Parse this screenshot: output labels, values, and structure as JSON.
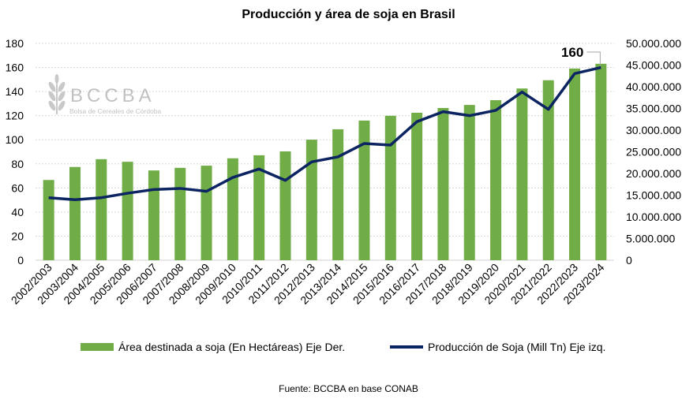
{
  "chart_data": {
    "type": "bar+line",
    "title": "Producción y área de soja en Brasil",
    "categories": [
      "2002/2003",
      "2003/2004",
      "2004/2005",
      "2005/2006",
      "2006/2007",
      "2007/2008",
      "2008/2009",
      "2009/2010",
      "2010/2011",
      "2011/2012",
      "2012/2013",
      "2013/2014",
      "2014/2015",
      "2015/2016",
      "2016/2017",
      "2017/2018",
      "2018/2019",
      "2019/2020",
      "2020/2021",
      "2021/2022",
      "2022/2023",
      "2023/2024"
    ],
    "series": [
      {
        "name": "Área destinada a soja (En Hectáreas) Eje Der.",
        "type": "bar",
        "axis": "right",
        "color": "#70ad47",
        "values": [
          18500000,
          21500000,
          23300000,
          22700000,
          20700000,
          21300000,
          21800000,
          23500000,
          24200000,
          25100000,
          27800000,
          30200000,
          32200000,
          33300000,
          34000000,
          35100000,
          35800000,
          36900000,
          39600000,
          41500000,
          44200000,
          45300000
        ]
      },
      {
        "name": "Producción de Soja (Mill Tn) Eje izq.",
        "type": "line",
        "axis": "left",
        "color": "#0c2461",
        "values": [
          51.9,
          50.2,
          51.9,
          55.6,
          58.7,
          59.6,
          57.2,
          68.7,
          75.7,
          66.3,
          81.6,
          85.8,
          96.9,
          95.6,
          115,
          123.3,
          120,
          124.4,
          139.6,
          125.2,
          154.9,
          160
        ]
      }
    ],
    "left_axis": {
      "ylim": [
        0,
        180
      ],
      "ticks": [
        "0",
        "20",
        "40",
        "60",
        "80",
        "100",
        "120",
        "140",
        "160",
        "180"
      ]
    },
    "right_axis": {
      "ylim": [
        0,
        50000000
      ],
      "ticks": [
        "0",
        "5.000.000",
        "10.000.000",
        "15.000.000",
        "20.000.000",
        "25.000.000",
        "30.000.000",
        "35.000.000",
        "40.000.000",
        "45.000.000",
        "50.000.000"
      ]
    },
    "annotation": "160",
    "grid": true,
    "legend_position": "bottom",
    "watermark": {
      "name": "BCCBA",
      "subtitle": "Bolsa de Cereales de Córdoba"
    },
    "source": "Fuente: BCCBA en base CONAB"
  }
}
